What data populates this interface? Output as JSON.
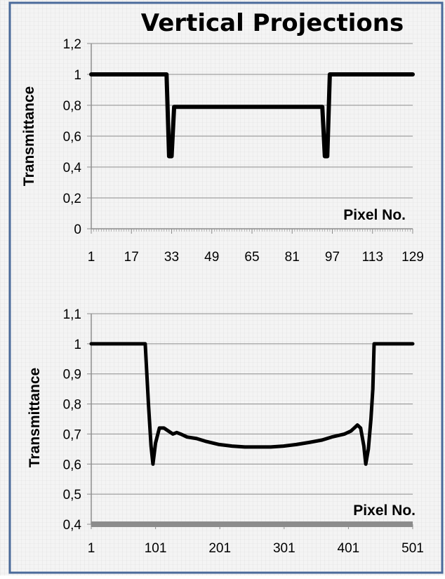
{
  "title": "Vertical Projections",
  "colors": {
    "border": "#4a6a9a",
    "grid": "#d2d2d2",
    "axis": "#8c8c8c",
    "series": "#000000",
    "baseline": "#8c8c8c",
    "text": "#000000"
  },
  "chart_data": [
    {
      "type": "line",
      "title": "",
      "xlabel": "Pixel No.",
      "ylabel": "Transmittance",
      "xlim": [
        1,
        129
      ],
      "ylim": [
        0,
        1.2
      ],
      "x_ticks": [
        "1",
        "17",
        "33",
        "49",
        "65",
        "81",
        "97",
        "113",
        "129"
      ],
      "y_ticks": [
        "0",
        "0,2",
        "0,4",
        "0,6",
        "0,8",
        "1",
        "1,2"
      ],
      "grid": true,
      "series": [
        {
          "name": "",
          "points": [
            [
              1,
              1
            ],
            [
              30,
              1
            ],
            [
              31,
              1
            ],
            [
              32,
              0.47
            ],
            [
              33,
              0.47
            ],
            [
              34,
              0.79
            ],
            [
              60,
              0.79
            ],
            [
              93,
              0.79
            ],
            [
              94,
              0.47
            ],
            [
              95,
              0.47
            ],
            [
              96,
              1
            ],
            [
              110,
              1
            ],
            [
              129,
              1
            ]
          ]
        }
      ]
    },
    {
      "type": "line",
      "title": "",
      "xlabel": "Pixel No.",
      "ylabel": "Transmittance",
      "xlim": [
        1,
        501
      ],
      "ylim": [
        0.4,
        1.1
      ],
      "x_ticks": [
        "1",
        "101",
        "201",
        "301",
        "401",
        "501"
      ],
      "y_ticks": [
        "0,4",
        "0,5",
        "0,6",
        "0,7",
        "0,8",
        "0,9",
        "1",
        "1,1"
      ],
      "grid": true,
      "series": [
        {
          "name": "",
          "points": [
            [
              1,
              1
            ],
            [
              85,
              1
            ],
            [
              90,
              0.8
            ],
            [
              94,
              0.66
            ],
            [
              97,
              0.6
            ],
            [
              101,
              0.67
            ],
            [
              107,
              0.72
            ],
            [
              114,
              0.72
            ],
            [
              121,
              0.71
            ],
            [
              128,
              0.7
            ],
            [
              134,
              0.705
            ],
            [
              140,
              0.7
            ],
            [
              150,
              0.69
            ],
            [
              165,
              0.685
            ],
            [
              180,
              0.675
            ],
            [
              200,
              0.665
            ],
            [
              220,
              0.66
            ],
            [
              240,
              0.657
            ],
            [
              260,
              0.657
            ],
            [
              280,
              0.657
            ],
            [
              300,
              0.66
            ],
            [
              320,
              0.665
            ],
            [
              340,
              0.672
            ],
            [
              360,
              0.68
            ],
            [
              375,
              0.69
            ],
            [
              385,
              0.695
            ],
            [
              395,
              0.7
            ],
            [
              405,
              0.71
            ],
            [
              410,
              0.72
            ],
            [
              415,
              0.73
            ],
            [
              420,
              0.72
            ],
            [
              425,
              0.66
            ],
            [
              428,
              0.6
            ],
            [
              432,
              0.65
            ],
            [
              436,
              0.75
            ],
            [
              439,
              0.85
            ],
            [
              441,
              1
            ],
            [
              460,
              1
            ],
            [
              501,
              1
            ]
          ]
        }
      ],
      "baseline_band": [
        0.4,
        0.4
      ]
    }
  ]
}
